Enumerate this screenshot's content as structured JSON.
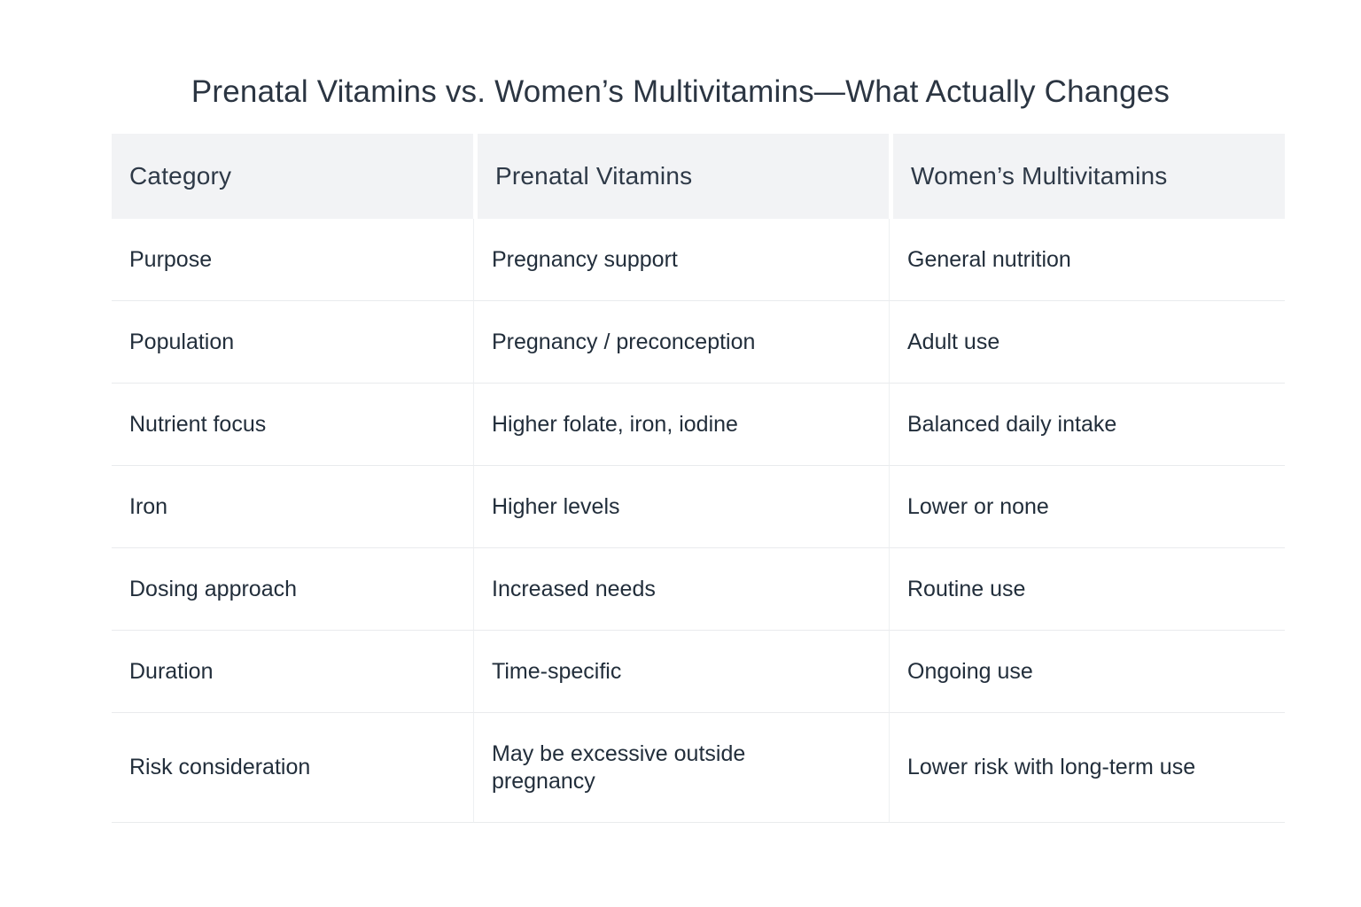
{
  "title": "Prenatal Vitamins vs. Women’s Multivitamins—What Actually Changes",
  "table": {
    "columns": [
      "Category",
      "Prenatal Vitamins",
      "Women’s Multivitamins"
    ],
    "rows": [
      [
        "Purpose",
        "Pregnancy support",
        "General nutrition"
      ],
      [
        "Population",
        "Pregnancy / preconception",
        "Adult use"
      ],
      [
        "Nutrient focus",
        "Higher folate, iron, iodine",
        "Balanced daily intake"
      ],
      [
        "Iron",
        "Higher levels",
        "Lower or none"
      ],
      [
        "Dosing approach",
        "Increased needs",
        "Routine use"
      ],
      [
        "Duration",
        "Time-specific",
        "Ongoing use"
      ],
      [
        "Risk consideration",
        "May be excessive outside\npregnancy",
        "Lower risk with long-term use"
      ]
    ]
  },
  "colors": {
    "text": "#2b3542",
    "header_background": "#f2f3f5",
    "row_divider": "#e9ebed",
    "column_line": "#eef0f2",
    "page_background": "#ffffff"
  }
}
